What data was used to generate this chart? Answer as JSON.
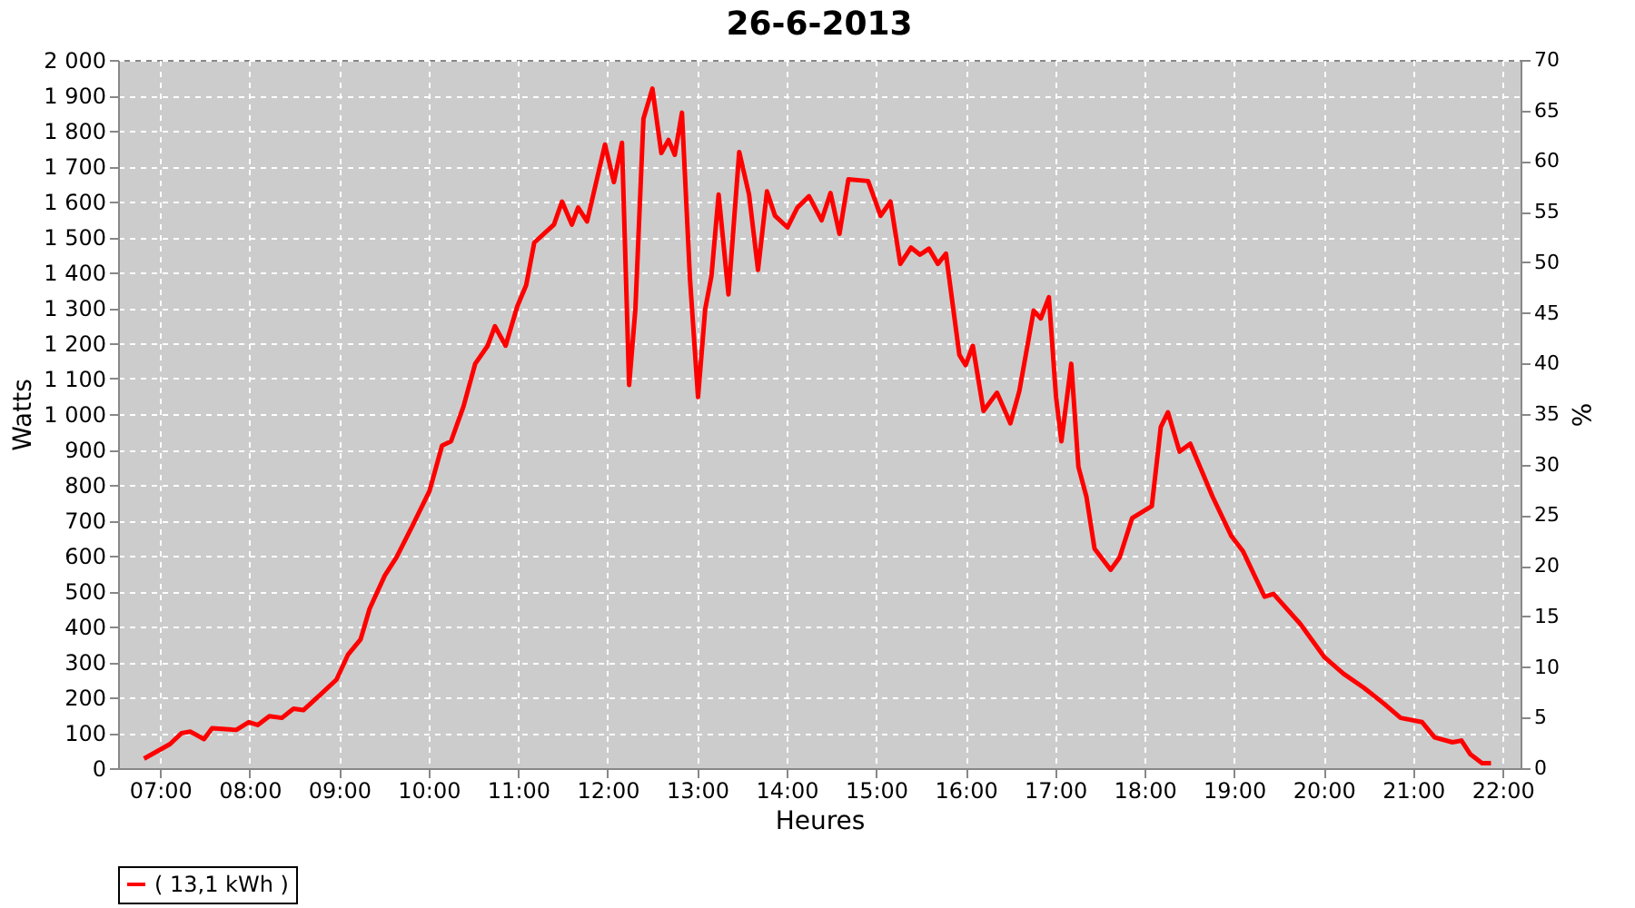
{
  "chart_data": {
    "type": "line",
    "title": "26-6-2013",
    "xlabel": "Heures",
    "ylabel": "Watts",
    "y2label": "%",
    "x": [
      6.82,
      7.11,
      7.24,
      7.34,
      7.49,
      7.58,
      7.85,
      7.99,
      8.09,
      8.22,
      8.36,
      8.49,
      8.6,
      8.8,
      8.97,
      9.1,
      9.24,
      9.34,
      9.51,
      9.64,
      9.81,
      10.01,
      10.15,
      10.25,
      10.39,
      10.52,
      10.66,
      10.74,
      10.86,
      10.99,
      11.09,
      11.18,
      11.4,
      11.49,
      11.6,
      11.67,
      11.77,
      11.84,
      11.97,
      12.07,
      12.16,
      12.24,
      12.31,
      12.4,
      12.5,
      12.6,
      12.68,
      12.75,
      12.83,
      12.92,
      13.01,
      13.09,
      13.16,
      13.24,
      13.35,
      13.47,
      13.58,
      13.68,
      13.78,
      13.87,
      14.01,
      14.12,
      14.25,
      14.39,
      14.49,
      14.59,
      14.69,
      14.91,
      15.05,
      15.16,
      15.27,
      15.39,
      15.49,
      15.59,
      15.69,
      15.78,
      15.93,
      16.0,
      16.08,
      16.2,
      16.35,
      16.5,
      16.6,
      16.76,
      16.84,
      16.93,
      17.01,
      17.07,
      17.18,
      17.26,
      17.35,
      17.44,
      17.62,
      17.72,
      17.86,
      18.08,
      18.18,
      18.26,
      18.39,
      18.51,
      18.76,
      18.97,
      19.1,
      19.34,
      19.44,
      19.74,
      20.01,
      20.22,
      20.45,
      20.66,
      20.86,
      21.1,
      21.24,
      21.44,
      21.54,
      21.64,
      21.77,
      21.87
    ],
    "series": [
      {
        "name": "( 13,1 kWh )",
        "color": "#ff0000",
        "values": [
          27,
          68,
          99,
          103,
          82,
          113,
          108,
          130,
          122,
          147,
          142,
          168,
          164,
          210,
          250,
          321,
          364,
          450,
          544,
          595,
          680,
          783,
          911,
          923,
          1022,
          1142,
          1193,
          1248,
          1193,
          1304,
          1364,
          1484,
          1535,
          1600,
          1535,
          1583,
          1544,
          1620,
          1761,
          1655,
          1766,
          1082,
          1296,
          1834,
          1919,
          1737,
          1774,
          1732,
          1851,
          1381,
          1048,
          1296,
          1390,
          1620,
          1338,
          1740,
          1620,
          1407,
          1629,
          1560,
          1527,
          1583,
          1615,
          1547,
          1624,
          1509,
          1663,
          1658,
          1560,
          1600,
          1424,
          1470,
          1450,
          1467,
          1424,
          1453,
          1167,
          1138,
          1193,
          1009,
          1060,
          974,
          1065,
          1292,
          1270,
          1330,
          1048,
          923,
          1142,
          851,
          766,
          620,
          560,
          595,
          706,
          740,
          963,
          1005,
          894,
          916,
          766,
          655,
          612,
          484,
          492,
          407,
          313,
          267,
          227,
          185,
          142,
          130,
          87,
          73,
          78,
          39,
          14,
          14
        ]
      }
    ],
    "xlim": [
      6.53,
      22.2
    ],
    "xticks": [
      {
        "value": 7,
        "label": "07:00"
      },
      {
        "value": 8,
        "label": "08:00"
      },
      {
        "value": 9,
        "label": "09:00"
      },
      {
        "value": 10,
        "label": "10:00"
      },
      {
        "value": 11,
        "label": "11:00"
      },
      {
        "value": 12,
        "label": "12:00"
      },
      {
        "value": 13,
        "label": "13:00"
      },
      {
        "value": 14,
        "label": "14:00"
      },
      {
        "value": 15,
        "label": "15:00"
      },
      {
        "value": 16,
        "label": "16:00"
      },
      {
        "value": 17,
        "label": "17:00"
      },
      {
        "value": 18,
        "label": "18:00"
      },
      {
        "value": 19,
        "label": "19:00"
      },
      {
        "value": 20,
        "label": "20:00"
      },
      {
        "value": 21,
        "label": "21:00"
      },
      {
        "value": 22,
        "label": "22:00"
      }
    ],
    "ylim": [
      0,
      2000
    ],
    "yticks": [
      0,
      100,
      200,
      300,
      400,
      500,
      600,
      700,
      800,
      900,
      {
        "value": 1000,
        "label": "1 000"
      },
      {
        "value": 1100,
        "label": "1 100"
      },
      {
        "value": 1200,
        "label": "1 200"
      },
      {
        "value": 1300,
        "label": "1 300"
      },
      {
        "value": 1400,
        "label": "1 400"
      },
      {
        "value": 1500,
        "label": "1 500"
      },
      {
        "value": 1600,
        "label": "1 600"
      },
      {
        "value": 1700,
        "label": "1 700"
      },
      {
        "value": 1800,
        "label": "1 800"
      },
      {
        "value": 1900,
        "label": "1 900"
      },
      {
        "value": 2000,
        "label": "2 000"
      }
    ],
    "y2lim": [
      0,
      70
    ],
    "y2ticks": [
      0,
      5,
      10,
      15,
      20,
      25,
      30,
      35,
      40,
      45,
      50,
      55,
      60,
      65,
      70
    ],
    "grid": true,
    "legend": "bottom",
    "marker": "none",
    "line_style": "solid"
  }
}
